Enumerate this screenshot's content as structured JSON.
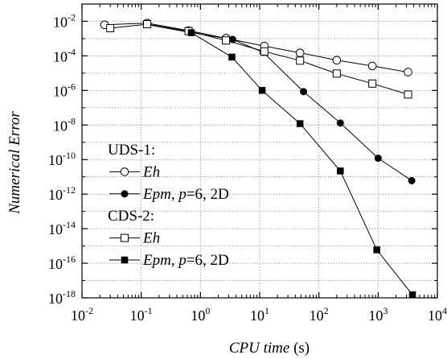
{
  "chart_data": {
    "type": "line",
    "xlabel": {
      "italic": "CPU time",
      "plain": " (s)"
    },
    "ylabel": "Numerical Error",
    "xscale": "log",
    "yscale": "log",
    "xlim": [
      0.01,
      10000
    ],
    "ylim": [
      1e-18,
      0.1
    ],
    "grid": true,
    "grid_style": "dotted",
    "x_ticks": [
      {
        "value": 0.01,
        "base": "10",
        "exp": "-2"
      },
      {
        "value": 0.1,
        "base": "10",
        "exp": "-1"
      },
      {
        "value": 1,
        "base": "10",
        "exp": "0"
      },
      {
        "value": 10,
        "base": "10",
        "exp": "1"
      },
      {
        "value": 100,
        "base": "10",
        "exp": "2"
      },
      {
        "value": 1000,
        "base": "10",
        "exp": "3"
      },
      {
        "value": 10000,
        "base": "10",
        "exp": "4"
      }
    ],
    "y_ticks": [
      {
        "value": 0.01,
        "base": "10",
        "exp": "-2"
      },
      {
        "value": 0.0001,
        "base": "10",
        "exp": "-4"
      },
      {
        "value": 1e-06,
        "base": "10",
        "exp": "-6"
      },
      {
        "value": 1e-08,
        "base": "10",
        "exp": "-8"
      },
      {
        "value": 1e-10,
        "base": "10",
        "exp": "-10"
      },
      {
        "value": 1e-12,
        "base": "10",
        "exp": "-12"
      },
      {
        "value": 1e-14,
        "base": "10",
        "exp": "-14"
      },
      {
        "value": 1e-16,
        "base": "10",
        "exp": "-16"
      },
      {
        "value": 1e-18,
        "base": "10",
        "exp": "-18"
      }
    ],
    "legend_position": "left",
    "legend": [
      {
        "type": "header",
        "text": "UDS-1:"
      },
      {
        "type": "entry",
        "series": 0,
        "parts": [
          {
            "t": "Eh",
            "i": true
          }
        ]
      },
      {
        "type": "entry",
        "series": 1,
        "parts": [
          {
            "t": "Epm",
            "i": true
          },
          {
            "t": ", ",
            "i": false
          },
          {
            "t": "p",
            "i": true
          },
          {
            "t": "=6, 2D",
            "i": false
          }
        ]
      },
      {
        "type": "header",
        "text": "CDS-2:"
      },
      {
        "type": "entry",
        "series": 2,
        "parts": [
          {
            "t": "Eh",
            "i": true
          }
        ]
      },
      {
        "type": "entry",
        "series": 3,
        "parts": [
          {
            "t": "Epm",
            "i": true
          },
          {
            "t": ", ",
            "i": false
          },
          {
            "t": "p",
            "i": true
          },
          {
            "t": "=6, 2D",
            "i": false
          }
        ]
      }
    ],
    "series": [
      {
        "marker": "circle-open",
        "points": [
          [
            0.024,
            0.0063
          ],
          [
            0.126,
            0.0079
          ],
          [
            0.63,
            0.0029
          ],
          [
            2.7,
            0.00105
          ],
          [
            12,
            0.00037
          ],
          [
            48,
            0.00015
          ],
          [
            200,
            5.6e-05
          ],
          [
            800,
            2.6e-05
          ],
          [
            3200,
            1.15e-05
          ]
        ]
      },
      {
        "marker": "circle-filled",
        "points": [
          [
            0.126,
            0.0065
          ],
          [
            0.7,
            0.0022
          ],
          [
            3.5,
            0.00089
          ],
          [
            11.5,
            0.00016
          ],
          [
            55,
            8.5e-07
          ],
          [
            230,
            1.3e-08
          ],
          [
            1000,
            1.2e-10
          ],
          [
            3700,
            6e-12
          ]
        ]
      },
      {
        "marker": "square-open",
        "points": [
          [
            0.03,
            0.004
          ],
          [
            0.126,
            0.0068
          ],
          [
            0.63,
            0.0027
          ],
          [
            2.7,
            0.00078
          ],
          [
            12,
            0.00018
          ],
          [
            48,
            5.3e-05
          ],
          [
            200,
            9.5e-06
          ],
          [
            800,
            2.5e-06
          ],
          [
            3200,
            5.8e-07
          ]
        ]
      },
      {
        "marker": "square-filled",
        "points": [
          [
            0.7,
            0.0022
          ],
          [
            3.4,
            8.5e-05
          ],
          [
            11,
            1e-06
          ],
          [
            48,
            1.2e-08
          ],
          [
            230,
            2.2e-11
          ],
          [
            950,
            6e-16
          ],
          [
            3800,
            1.5e-18
          ]
        ]
      }
    ]
  }
}
